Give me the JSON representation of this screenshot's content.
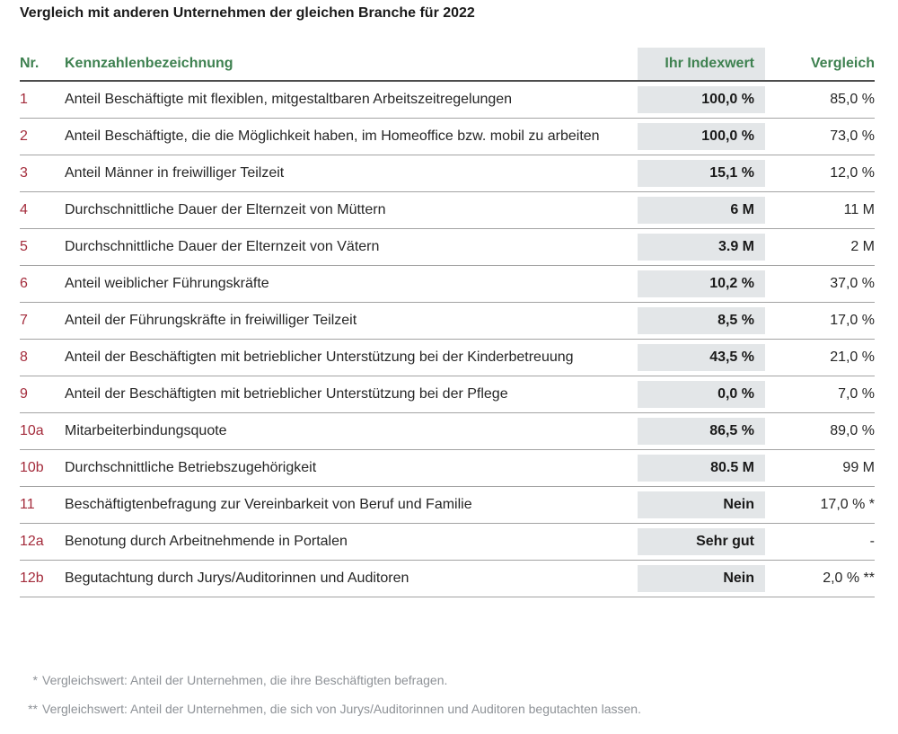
{
  "title": "Vergleich mit anderen Unternehmen der gleichen Branche für 2022",
  "table": {
    "headers": {
      "nr": "Nr.",
      "name": "Kennzahlenbezeichnung",
      "index": "Ihr Indexwert",
      "compare": "Vergleich"
    },
    "rows": [
      {
        "nr": "1",
        "label": "Anteil Beschäftigte mit flexiblen, mitgestaltbaren Arbeitszeitregelungen",
        "index": "100,0 %",
        "compare": "85,0 %"
      },
      {
        "nr": "2",
        "label": "Anteil Beschäftigte, die die Möglichkeit haben, im Homeoffice bzw. mobil zu arbeiten",
        "index": "100,0 %",
        "compare": "73,0 %"
      },
      {
        "nr": "3",
        "label": "Anteil Männer in freiwilliger Teilzeit",
        "index": "15,1 %",
        "compare": "12,0 %"
      },
      {
        "nr": "4",
        "label": "Durchschnittliche Dauer der Elternzeit von Müttern",
        "index": "6 M",
        "compare": "11 M"
      },
      {
        "nr": "5",
        "label": "Durchschnittliche Dauer der Elternzeit von Vätern",
        "index": "3.9 M",
        "compare": "2 M"
      },
      {
        "nr": "6",
        "label": "Anteil weiblicher Führungskräfte",
        "index": "10,2 %",
        "compare": "37,0 %"
      },
      {
        "nr": "7",
        "label": "Anteil der Führungskräfte in freiwilliger Teilzeit",
        "index": "8,5 %",
        "compare": "17,0 %"
      },
      {
        "nr": "8",
        "label": "Anteil der Beschäftigten mit betrieblicher Unterstützung bei der Kinderbetreuung",
        "index": "43,5 %",
        "compare": "21,0 %"
      },
      {
        "nr": "9",
        "label": "Anteil der Beschäftigten mit betrieblicher Unterstützung bei der Pflege",
        "index": "0,0 %",
        "compare": "7,0 %"
      },
      {
        "nr": "10a",
        "label": "Mitarbeiterbindungsquote",
        "index": "86,5 %",
        "compare": "89,0 %"
      },
      {
        "nr": "10b",
        "label": "Durchschnittliche Betriebszugehörigkeit",
        "index": "80.5 M",
        "compare": "99 M"
      },
      {
        "nr": "11",
        "label": "Beschäftigtenbefragung zur Vereinbarkeit von Beruf und Familie",
        "index": "Nein",
        "compare": "17,0 % *"
      },
      {
        "nr": "12a",
        "label": "Benotung durch Arbeitnehmende in Portalen",
        "index": "Sehr gut",
        "compare": "-"
      },
      {
        "nr": "12b",
        "label": "Begutachtung durch Jurys/Auditorinnen und Auditoren",
        "index": "Nein",
        "compare": "2,0 % **"
      }
    ]
  },
  "footnotes": [
    {
      "marker": "*",
      "text": "Vergleichswert: Anteil der Unternehmen, die ihre Beschäftigten befragen."
    },
    {
      "marker": "**",
      "text": "Vergleichswert: Anteil der Unternehmen, die sich von Jurys/Auditorinnen und Auditoren begutachten lassen."
    }
  ],
  "colors": {
    "header_green": "#3e8150",
    "number_red": "#a42c3c",
    "cell_shade": "#e3e6e8",
    "body_text": "#262626",
    "footnote_gray": "#8e9297",
    "header_rule": "#4d4d4d",
    "row_rule": "#a3a3a3"
  }
}
